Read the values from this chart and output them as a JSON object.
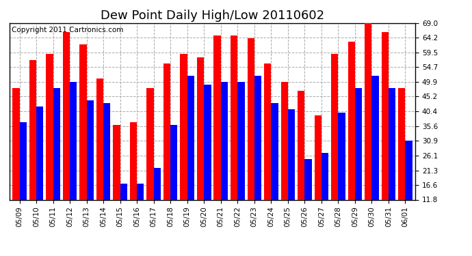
{
  "title": "Dew Point Daily High/Low 20110602",
  "copyright": "Copyright 2011 Cartronics.com",
  "dates": [
    "05/09",
    "05/10",
    "05/11",
    "05/12",
    "05/13",
    "05/14",
    "05/15",
    "05/16",
    "05/17",
    "05/18",
    "05/19",
    "05/20",
    "05/21",
    "05/22",
    "05/23",
    "05/24",
    "05/25",
    "05/26",
    "05/27",
    "05/28",
    "05/29",
    "05/30",
    "05/31",
    "06/01"
  ],
  "highs": [
    48,
    57,
    59,
    66,
    62,
    51,
    36,
    37,
    48,
    56,
    59,
    58,
    65,
    65,
    64,
    56,
    50,
    47,
    39,
    59,
    63,
    70,
    66,
    48
  ],
  "lows": [
    37,
    42,
    48,
    50,
    44,
    43,
    17,
    17,
    22,
    36,
    52,
    49,
    50,
    50,
    52,
    43,
    41,
    25,
    27,
    40,
    48,
    52,
    48,
    31
  ],
  "y_ticks": [
    11.8,
    16.6,
    21.3,
    26.1,
    30.9,
    35.6,
    40.4,
    45.2,
    49.9,
    54.7,
    59.5,
    64.2,
    69.0
  ],
  "ymin": 11.8,
  "ymax": 69.0,
  "bar_width": 0.42,
  "high_color": "#ff0000",
  "low_color": "#0000ff",
  "bg_color": "#ffffff",
  "plot_bg": "#ffffff",
  "grid_color": "#aaaaaa",
  "title_fontsize": 13,
  "tick_fontsize": 7.5,
  "copyright_fontsize": 7.5
}
